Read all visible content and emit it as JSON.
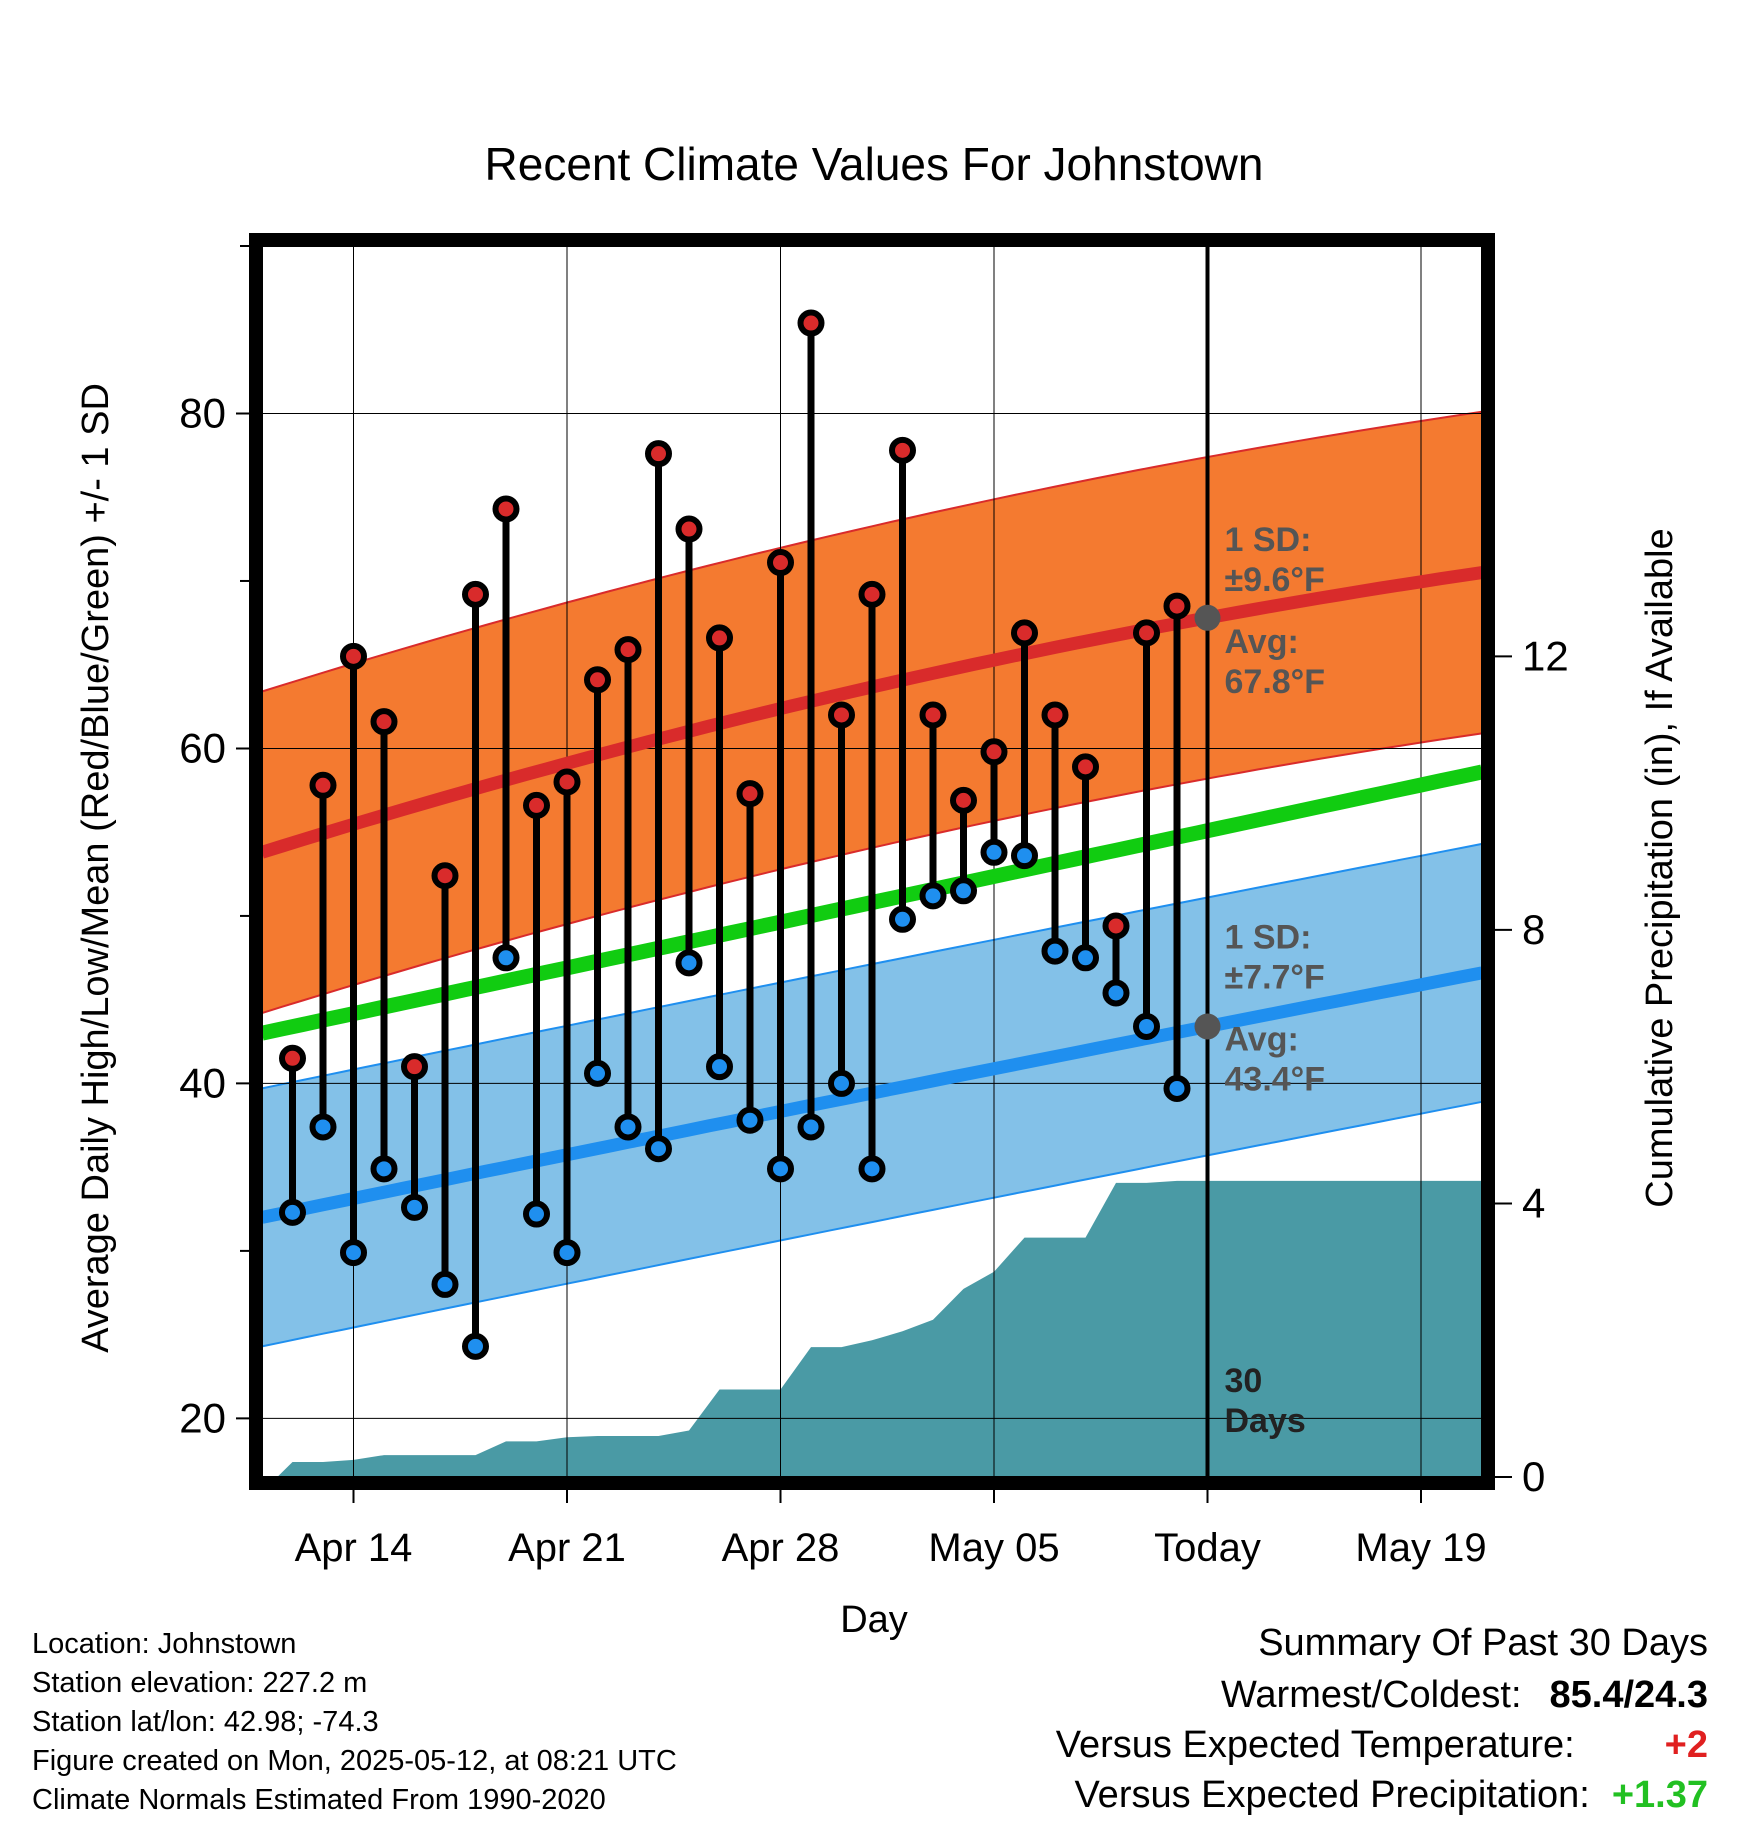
{
  "chart_data": {
    "type": "line",
    "title": "Recent Climate Values For Johnstown",
    "xlabel": "Day",
    "ylabel_left": "Average Daily High/Low/Mean (Red/Blue/Green) +/- 1 SD",
    "ylabel_right": "Cumulative Precipitation (in), If Available",
    "x_ticks": [
      "Apr 14",
      "Apr 21",
      "Apr 28",
      "May 05",
      "Today",
      "May 19"
    ],
    "x_tick_days": [
      3,
      10,
      17,
      24,
      31,
      38
    ],
    "xlim": [
      0,
      40
    ],
    "ylim_left": [
      16.5,
      90
    ],
    "left_ticks": [
      20,
      40,
      60,
      80
    ],
    "ylim_right": [
      0,
      18
    ],
    "right_ticks": [
      0,
      4,
      8,
      12
    ],
    "today_day": 31,
    "today_label": "30\nDays",
    "high": [
      41.5,
      57.8,
      65.5,
      61.6,
      41.0,
      52.4,
      69.2,
      74.3,
      56.6,
      58.0,
      64.1,
      65.9,
      77.6,
      73.1,
      66.6,
      57.3,
      71.1,
      85.4,
      62.0,
      69.2,
      77.8,
      62.0,
      56.9,
      59.8,
      66.9,
      62.0,
      58.9,
      49.4,
      66.9,
      68.5
    ],
    "low": [
      32.3,
      37.4,
      29.9,
      34.9,
      32.6,
      28.0,
      24.3,
      47.5,
      32.2,
      29.9,
      40.6,
      37.4,
      36.1,
      47.2,
      41.0,
      37.8,
      34.9,
      37.4,
      40.0,
      34.9,
      49.8,
      51.2,
      51.5,
      53.8,
      53.6,
      47.9,
      47.5,
      45.4,
      43.4,
      39.7
    ],
    "high_normal_start": 53.8,
    "high_normal_today": 67.8,
    "high_normal_end": 70.5,
    "low_normal_start": 32.0,
    "low_normal_today": 43.4,
    "low_normal_end": 46.6,
    "mean_normal_start": 43.0,
    "mean_normal_end": 58.6,
    "high_sd": 9.6,
    "low_sd": 7.7,
    "precip_x": [
      0.5,
      1,
      2,
      3,
      4,
      5,
      6,
      7,
      8,
      9,
      10,
      11,
      12,
      13,
      14,
      15,
      16,
      17,
      18,
      19,
      20,
      21,
      22,
      23,
      24,
      25,
      26,
      27,
      28,
      29,
      30,
      31,
      40
    ],
    "precip": [
      0,
      0.22,
      0.22,
      0.25,
      0.32,
      0.32,
      0.32,
      0.32,
      0.52,
      0.52,
      0.58,
      0.6,
      0.6,
      0.6,
      0.68,
      1.28,
      1.28,
      1.28,
      1.9,
      1.9,
      2.0,
      2.13,
      2.3,
      2.75,
      3.0,
      3.5,
      3.5,
      3.5,
      4.3,
      4.3,
      4.33,
      4.33,
      4.33
    ],
    "colors": {
      "high": "#d92b2b",
      "high_band": "#f47a30",
      "low": "#1f8fef",
      "low_band": "#83c1e8",
      "mean": "#11cc11",
      "precip": "#4a9aa5",
      "annot": "#555555"
    }
  },
  "annotations": {
    "high_sd_l1": "1 SD:",
    "high_sd_l2": "±9.6°F",
    "high_avg_l1": "Avg:",
    "high_avg_l2": "67.8°F",
    "low_sd_l1": "1 SD:",
    "low_sd_l2": "±7.7°F",
    "low_avg_l1": "Avg:",
    "low_avg_l2": "43.4°F",
    "days_l1": "30",
    "days_l2": "Days"
  },
  "meta": {
    "location": "Location: Johnstown",
    "elevation": "Station elevation: 227.2 m",
    "latlon": "Station lat/lon: 42.98; -74.3",
    "created": "Figure created on Mon, 2025-05-12, at 08:21 UTC",
    "normals": "Climate Normals Estimated From 1990-2020"
  },
  "summary": {
    "title": "Summary Of Past 30 Days",
    "warm_label": "Warmest/Coldest:",
    "warm_value": "85.4/24.3",
    "temp_label": "Versus Expected Temperature:",
    "temp_value": "+2",
    "temp_color": "#e02020",
    "precip_label": "Versus Expected Precipitation:",
    "precip_value": "+1.37",
    "precip_color": "#22c022"
  }
}
